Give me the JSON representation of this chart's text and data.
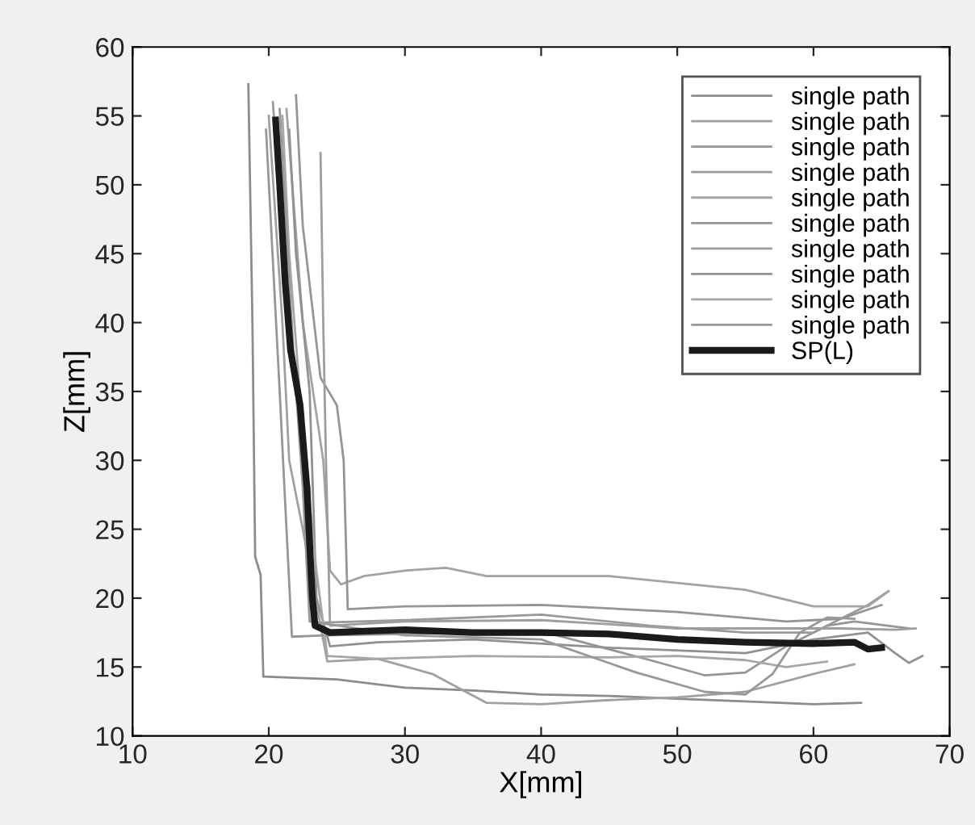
{
  "chart_data": {
    "type": "line",
    "xlabel": "X[mm]",
    "ylabel": "Z[mm]",
    "xlim": [
      10,
      70
    ],
    "xticks": [
      10,
      20,
      30,
      40,
      50,
      60,
      70
    ],
    "ylim": [
      10,
      60
    ],
    "yticks": [
      10,
      15,
      20,
      25,
      30,
      35,
      40,
      45,
      50,
      55,
      60
    ],
    "grid": false,
    "legend": "top right",
    "line_style": "solid",
    "marker": "none",
    "series": [
      {
        "name": "single path",
        "color": "#8c8c8c",
        "x": [
          18.5,
          18.8,
          19.0,
          19.4,
          19.6,
          25,
          30,
          35,
          40,
          45,
          50,
          55,
          60,
          63.5
        ],
        "values": [
          57.3,
          40,
          23,
          21.7,
          14.3,
          14.1,
          13.5,
          13.3,
          13.0,
          12.9,
          12.7,
          12.5,
          12.3,
          12.4
        ]
      },
      {
        "name": "single path",
        "color": "#a0a0a0",
        "x": [
          20,
          21,
          21.5,
          22.5,
          23.8,
          24.3,
          28,
          32,
          36,
          40,
          45,
          50,
          55,
          60,
          63
        ],
        "values": [
          55,
          40,
          30,
          25,
          18,
          15.4,
          15.6,
          14.5,
          12.4,
          12.3,
          12.6,
          12.8,
          13.2,
          14.5,
          15.2
        ]
      },
      {
        "name": "single path",
        "color": "#969696",
        "x": [
          19.8,
          20.8,
          21.2,
          21.7,
          24,
          30,
          40,
          48,
          52,
          55,
          58,
          61,
          63,
          67
        ],
        "values": [
          54,
          35,
          27,
          17.2,
          17.3,
          17.4,
          17.6,
          15.5,
          14.4,
          14.6,
          16.5,
          18.0,
          18.3,
          17.8
        ]
      },
      {
        "name": "single path",
        "color": "#9a9a9a",
        "x": [
          20.3,
          21.5,
          22.5,
          23,
          23.2,
          30,
          40,
          48,
          55,
          60,
          64,
          65.5
        ],
        "values": [
          56,
          40,
          30,
          28,
          18.2,
          18.4,
          18.8,
          18.0,
          17.5,
          17.5,
          19.5,
          20.5
        ]
      },
      {
        "name": "single path",
        "color": "#a3a3a3",
        "x": [
          21.3,
          22.5,
          24,
          24.5,
          25.3,
          27,
          30,
          33,
          36,
          45,
          55,
          60,
          64,
          65.5
        ],
        "values": [
          55.5,
          40,
          30,
          22,
          21.0,
          21.6,
          22.0,
          22.2,
          21.6,
          21.6,
          20.6,
          19.4,
          19.4,
          20.5
        ]
      },
      {
        "name": "single path",
        "color": "#959595",
        "x": [
          22,
          22.5,
          23.8,
          25,
          25.5,
          25.8,
          30,
          40,
          50,
          58,
          62,
          65
        ],
        "values": [
          56.5,
          47,
          36,
          34,
          30,
          19.2,
          19.4,
          19.5,
          19.0,
          18.3,
          18.5,
          19.5
        ]
      },
      {
        "name": "single path",
        "color": "#9e9e9e",
        "x": [
          23.8,
          24,
          24.2,
          24.5,
          30,
          40,
          50,
          57,
          62,
          66,
          67.5
        ],
        "values": [
          52.3,
          40,
          30,
          18.0,
          18.3,
          18.4,
          17.8,
          17.8,
          17.8,
          17.7,
          17.8
        ]
      },
      {
        "name": "single path",
        "color": "#919191",
        "x": [
          21.5,
          22,
          23,
          23.5,
          24.5,
          28,
          35,
          45,
          55,
          60,
          64,
          66,
          67,
          68
        ],
        "values": [
          54,
          45,
          35,
          20,
          16.5,
          16.8,
          17.0,
          16.4,
          16.0,
          17.0,
          17.5,
          16.0,
          15.3,
          15.8
        ]
      },
      {
        "name": "single path",
        "color": "#a6a6a6",
        "x": [
          21,
          21.5,
          22.5,
          23.5,
          24.3,
          28,
          35,
          45,
          50,
          55,
          58,
          61
        ],
        "values": [
          55,
          45,
          32,
          22,
          15.8,
          15.6,
          15.8,
          15.7,
          15.8,
          15.5,
          15.0,
          15.4
        ]
      },
      {
        "name": "single path",
        "color": "#989898",
        "x": [
          20.8,
          21.8,
          22.5,
          23,
          30,
          40,
          47,
          52,
          55,
          57,
          59,
          61,
          63
        ],
        "values": [
          55.5,
          38,
          28,
          18.3,
          17.3,
          17.0,
          14.6,
          13.2,
          13.0,
          14.5,
          17.5,
          18.6,
          18.5
        ]
      },
      {
        "name": "SP(L)",
        "color": "#1a1a1a",
        "x": [
          20.5,
          20.8,
          21.2,
          21.6,
          22.3,
          22.8,
          23.2,
          23.4,
          24.5,
          27,
          30,
          35,
          40,
          45,
          50,
          55,
          60,
          63,
          64,
          65
        ],
        "values": [
          54.7,
          50,
          43,
          38,
          34,
          28,
          20,
          18.0,
          17.5,
          17.6,
          17.7,
          17.5,
          17.5,
          17.4,
          17.0,
          16.8,
          16.7,
          16.8,
          16.3,
          16.4
        ]
      }
    ]
  }
}
